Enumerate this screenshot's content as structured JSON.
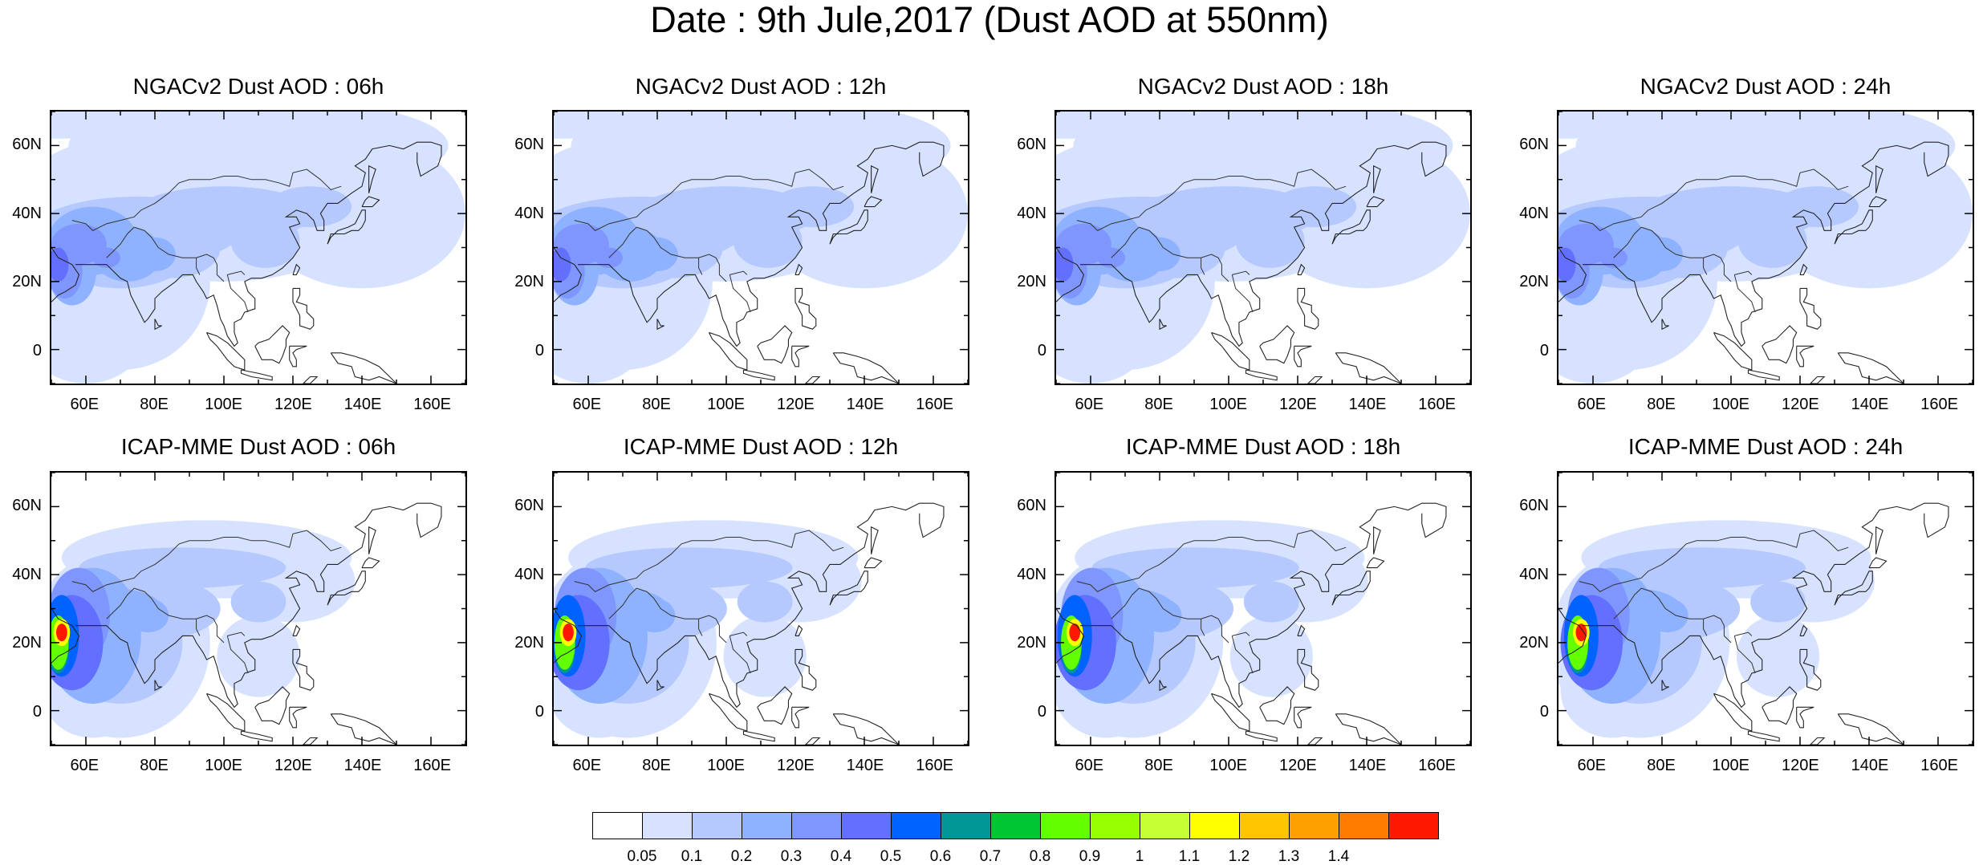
{
  "title": "Date : 9th Jule,2017 (Dust AOD at 550nm)",
  "lat_labels": [
    "60N",
    "40N",
    "20N",
    "0"
  ],
  "lon_labels": [
    "60E",
    "80E",
    "100E",
    "120E",
    "140E",
    "160E"
  ],
  "panels": [
    {
      "title": "NGACv2 Dust AOD : 06h",
      "model": "NGACv2",
      "lead": "06h"
    },
    {
      "title": "NGACv2 Dust AOD : 12h",
      "model": "NGACv2",
      "lead": "12h"
    },
    {
      "title": "NGACv2 Dust AOD : 18h",
      "model": "NGACv2",
      "lead": "18h"
    },
    {
      "title": "NGACv2 Dust AOD : 24h",
      "model": "NGACv2",
      "lead": "24h"
    },
    {
      "title": "ICAP-MME Dust AOD : 06h",
      "model": "ICAP-MME",
      "lead": "06h"
    },
    {
      "title": "ICAP-MME Dust AOD : 12h",
      "model": "ICAP-MME",
      "lead": "12h"
    },
    {
      "title": "ICAP-MME Dust AOD : 18h",
      "model": "ICAP-MME",
      "lead": "18h"
    },
    {
      "title": "ICAP-MME Dust AOD : 24h",
      "model": "ICAP-MME",
      "lead": "24h"
    }
  ],
  "colorbar": {
    "colors": [
      "#ffffff",
      "#d6e2ff",
      "#b5c9ff",
      "#8eb2ff",
      "#7f96ff",
      "#6370ff",
      "#0063ff",
      "#009696",
      "#00c633",
      "#63ff00",
      "#96ff00",
      "#c6ff33",
      "#ffff00",
      "#ffc600",
      "#ffa000",
      "#ff7c00",
      "#ff1900"
    ],
    "labels": [
      "0.05",
      "0.1",
      "0.2",
      "0.3",
      "0.4",
      "0.5",
      "0.6",
      "0.7",
      "0.8",
      "0.9",
      "1",
      "1.1",
      "1.2",
      "1.3",
      "1.4"
    ]
  }
}
